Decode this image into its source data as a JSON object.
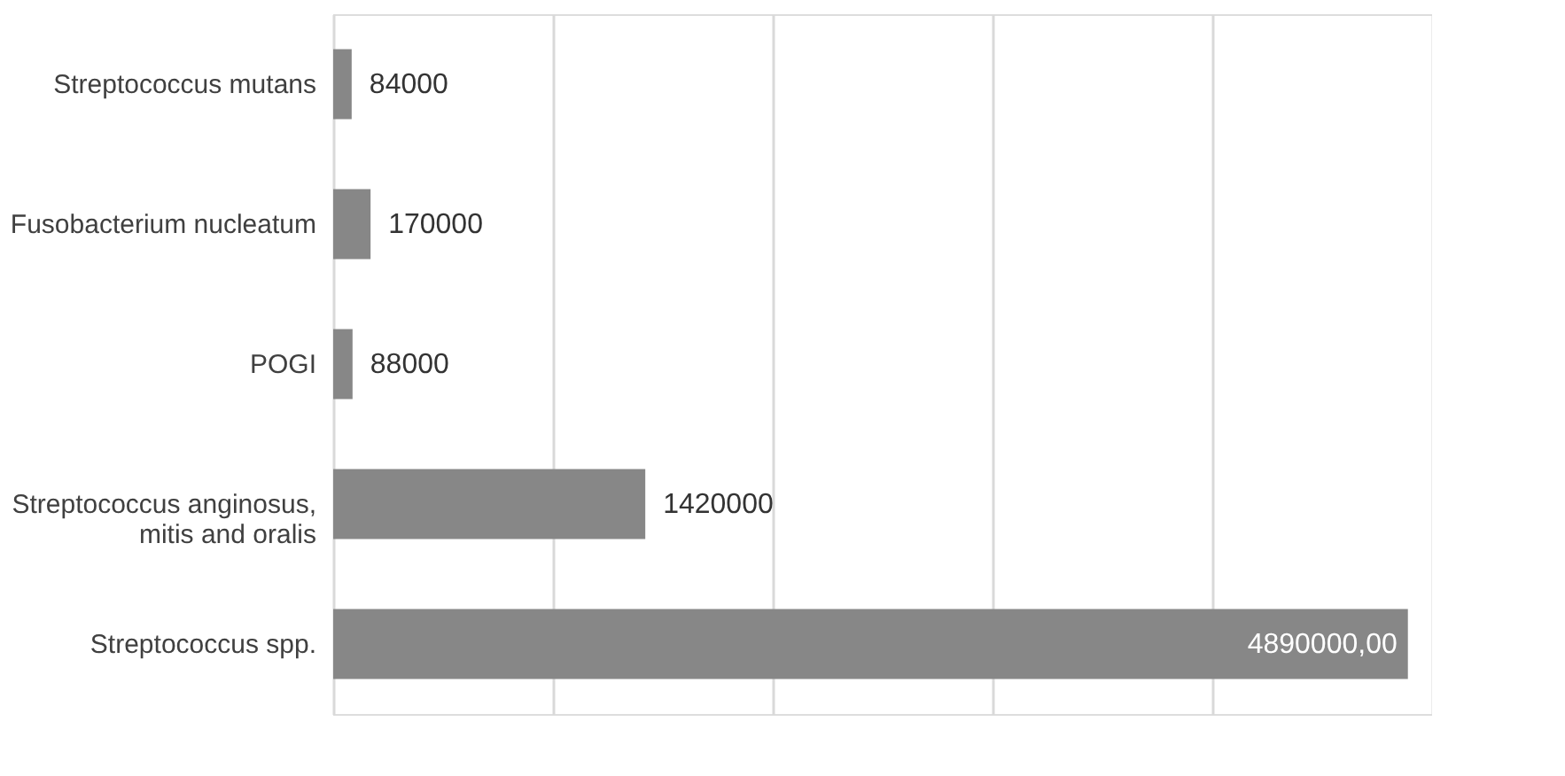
{
  "chart_data": {
    "type": "bar",
    "orientation": "horizontal",
    "categories": [
      "Streptococcus mutans",
      "Fusobacterium nucleatum",
      "POGI",
      "Streptococcus anginosus, mitis and oralis",
      "Streptococcus spp."
    ],
    "values": [
      84000,
      170000,
      88000,
      1420000,
      4890000
    ],
    "value_labels": [
      "84000",
      "170000",
      "88000",
      "1420000",
      "4890000,00"
    ],
    "color": "#878787",
    "xlim": [
      0,
      5000000
    ],
    "xticks": [
      {
        "value": 0,
        "label": null
      },
      {
        "value": 1000000,
        "label": null
      },
      {
        "value": 2000000,
        "label": null
      },
      {
        "value": 3000000,
        "label": null
      },
      {
        "value": 4000000,
        "label": null
      },
      {
        "value": 5000000,
        "label": null
      }
    ],
    "grid": "x",
    "tick_labels": "y"
  }
}
